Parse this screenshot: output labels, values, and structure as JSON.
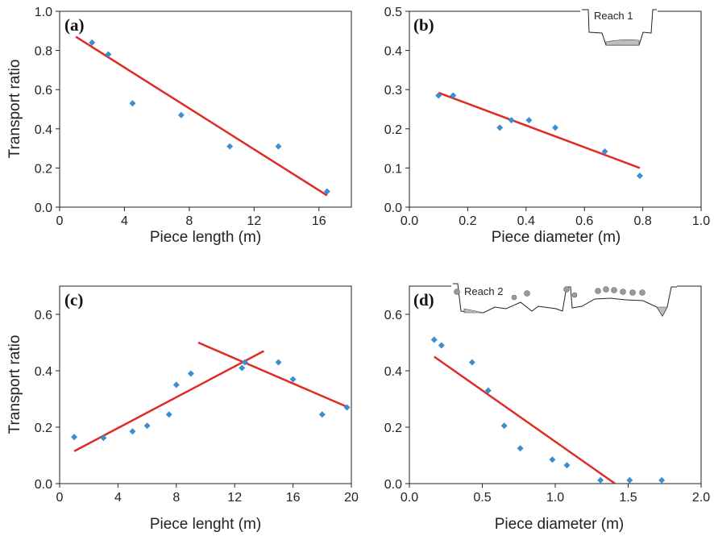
{
  "chart_data": [
    {
      "panel": "(a)",
      "type": "scatter",
      "xlabel": "Piece length (m)",
      "ylabel": "Transport ratio",
      "xlim": [
        0,
        18
      ],
      "ylim": [
        0,
        1.0
      ],
      "xticks": [
        0,
        4,
        8,
        12,
        16
      ],
      "yticks": [
        0.0,
        0.2,
        0.4,
        0.6,
        0.8,
        1.0
      ],
      "points": [
        [
          2,
          0.84
        ],
        [
          3,
          0.78
        ],
        [
          4.5,
          0.53
        ],
        [
          7.5,
          0.47
        ],
        [
          10.5,
          0.31
        ],
        [
          13.5,
          0.31
        ],
        [
          16.5,
          0.08
        ]
      ],
      "fit_lines": [
        [
          [
            1,
            0.87
          ],
          [
            16.5,
            0.06
          ]
        ]
      ]
    },
    {
      "panel": "(b)",
      "type": "scatter",
      "xlabel": "Piece diameter (m)",
      "ylabel": "",
      "xlim": [
        0,
        1.0
      ],
      "ylim": [
        0,
        0.5
      ],
      "xticks": [
        0.0,
        0.2,
        0.4,
        0.6,
        0.8,
        1.0
      ],
      "yticks": [
        0.0,
        0.1,
        0.2,
        0.3,
        0.4,
        0.5
      ],
      "points": [
        [
          0.1,
          0.285
        ],
        [
          0.15,
          0.285
        ],
        [
          0.31,
          0.203
        ],
        [
          0.35,
          0.222
        ],
        [
          0.41,
          0.222
        ],
        [
          0.5,
          0.203
        ],
        [
          0.67,
          0.142
        ],
        [
          0.79,
          0.08
        ]
      ],
      "fit_lines": [
        [
          [
            0.1,
            0.292
          ],
          [
            0.79,
            0.1
          ]
        ]
      ],
      "inset_label": "Reach 1"
    },
    {
      "panel": "(c)",
      "type": "scatter",
      "xlabel": "Piece lenght (m)",
      "ylabel": "Transport ratio",
      "xlim": [
        0,
        20
      ],
      "ylim": [
        0,
        0.7
      ],
      "xticks": [
        0,
        4,
        8,
        12,
        16,
        20
      ],
      "yticks": [
        0.0,
        0.2,
        0.4,
        0.6
      ],
      "points": [
        [
          1,
          0.165
        ],
        [
          3,
          0.162
        ],
        [
          5,
          0.185
        ],
        [
          6,
          0.205
        ],
        [
          7.5,
          0.245
        ],
        [
          8,
          0.35
        ],
        [
          9,
          0.39
        ],
        [
          12.5,
          0.41
        ],
        [
          12.7,
          0.43
        ],
        [
          15,
          0.43
        ],
        [
          16,
          0.37
        ],
        [
          18,
          0.245
        ],
        [
          19.7,
          0.27
        ]
      ],
      "fit_lines": [
        [
          [
            1,
            0.115
          ],
          [
            14,
            0.47
          ]
        ],
        [
          [
            9.5,
            0.5
          ],
          [
            19.8,
            0.27
          ]
        ]
      ]
    },
    {
      "panel": "(d)",
      "type": "scatter",
      "xlabel": "Piece diameter (m)",
      "ylabel": "",
      "xlim": [
        0,
        2.0
      ],
      "ylim": [
        0,
        0.7
      ],
      "xticks": [
        0.0,
        0.5,
        1.0,
        1.5,
        2.0
      ],
      "yticks": [
        0.0,
        0.2,
        0.4,
        0.6
      ],
      "points": [
        [
          0.17,
          0.51
        ],
        [
          0.22,
          0.49
        ],
        [
          0.43,
          0.43
        ],
        [
          0.54,
          0.33
        ],
        [
          0.65,
          0.205
        ],
        [
          0.76,
          0.125
        ],
        [
          0.98,
          0.085
        ],
        [
          1.08,
          0.065
        ],
        [
          1.31,
          0.012
        ],
        [
          1.51,
          0.012
        ],
        [
          1.73,
          0.012
        ]
      ],
      "fit_lines": [
        [
          [
            0.17,
            0.45
          ],
          [
            1.41,
            0.0
          ]
        ]
      ],
      "inset_label": "Reach 2"
    }
  ],
  "colors": {
    "points": "#3a8fd1",
    "fit_line": "#e02b22",
    "axis": "#222222"
  }
}
